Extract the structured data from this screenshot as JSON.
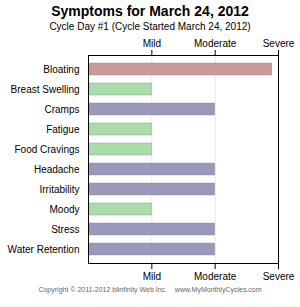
{
  "chart_data": {
    "type": "bar",
    "orientation": "horizontal",
    "title": "Symptoms for March 24, 2012",
    "subtitle": "Cycle Day #1 (Cycle Started March 24, 2012)",
    "caption": "Copyright © 2011-2012 blinfinity Web Inc.    www.MyMonthlyCycles.com",
    "categories": [
      "Bloating",
      "Breast Swelling",
      "Cramps",
      "Fatigue",
      "Food Cravings",
      "Headache",
      "Irritability",
      "Moody",
      "Stress",
      "Water Retention"
    ],
    "values": [
      2.9,
      1.0,
      2.0,
      1.0,
      1.0,
      2.0,
      2.0,
      1.0,
      2.0,
      2.0
    ],
    "colors": [
      "#cc9999",
      "#aaddaa",
      "#9999bb",
      "#aaddaa",
      "#aaddaa",
      "#9999bb",
      "#9999bb",
      "#aaddaa",
      "#9999bb",
      "#9999bb"
    ],
    "xlim": [
      0,
      3
    ],
    "xticks": [
      {
        "value": 1,
        "label": "Mild"
      },
      {
        "value": 2,
        "label": "Moderate"
      },
      {
        "value": 3,
        "label": "Severe"
      }
    ],
    "grid": true
  }
}
